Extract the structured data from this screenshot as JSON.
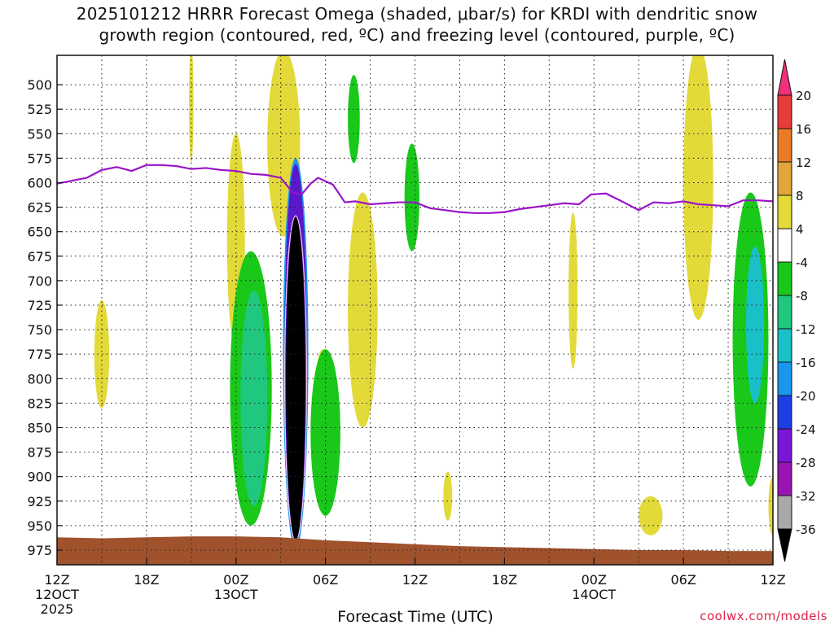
{
  "title_line1": "2025101212 HRRR Forecast Omega (shaded, μbar/s) for KRDI with dendritic snow",
  "title_line2": "growth region (contoured, red, ºC) and freezing level (contoured, purple, ºC)",
  "credit": "coolwx.com/models",
  "chart_data": {
    "type": "heatmap",
    "title": "2025101212 HRRR Forecast Omega (shaded, μbar/s) for KRDI with dendritic snow growth region (contoured, red, ºC) and freezing level (contoured, purple, ºC)",
    "xlabel": "Forecast Time (UTC)",
    "ylabel": "",
    "x_unit": "forecast hour",
    "xlim": [
      0,
      48
    ],
    "ylim": [
      990,
      470
    ],
    "y_scale": "pressure (hPa), increasing downward",
    "grid": true,
    "x_ticks": [
      {
        "hour": 0,
        "label": "12Z",
        "sub1": "12OCT",
        "sub2": "2025"
      },
      {
        "hour": 6,
        "label": "18Z",
        "sub1": "",
        "sub2": ""
      },
      {
        "hour": 12,
        "label": "00Z",
        "sub1": "13OCT",
        "sub2": ""
      },
      {
        "hour": 18,
        "label": "06Z",
        "sub1": "",
        "sub2": ""
      },
      {
        "hour": 24,
        "label": "12Z",
        "sub1": "",
        "sub2": ""
      },
      {
        "hour": 30,
        "label": "18Z",
        "sub1": "",
        "sub2": ""
      },
      {
        "hour": 36,
        "label": "00Z",
        "sub1": "14OCT",
        "sub2": ""
      },
      {
        "hour": 42,
        "label": "06Z",
        "sub1": "",
        "sub2": ""
      },
      {
        "hour": 48,
        "label": "12Z",
        "sub1": "",
        "sub2": ""
      }
    ],
    "y_ticks": [
      500,
      525,
      550,
      575,
      600,
      625,
      650,
      675,
      700,
      725,
      750,
      775,
      800,
      825,
      850,
      875,
      900,
      925,
      950,
      975
    ],
    "colorbar": {
      "unit": "μbar/s",
      "boundaries": [
        20,
        16,
        12,
        8,
        4,
        -4,
        -8,
        -12,
        -16,
        -20,
        -24,
        -28,
        -32,
        -36
      ],
      "colors": [
        "#f0307a",
        "#e83c3c",
        "#e97a26",
        "#e2a63a",
        "#e3da3a",
        "#ffffff",
        "#1ac81a",
        "#1fc87e",
        "#19c0c8",
        "#1a96f0",
        "#1e3ee6",
        "#7a16d6",
        "#9a14b4",
        "#a8a8a8",
        "#000000"
      ]
    },
    "freezing_level": {
      "color": "#9a14c8",
      "points": [
        [
          0,
          601
        ],
        [
          1,
          598
        ],
        [
          2,
          595
        ],
        [
          3,
          587
        ],
        [
          4,
          584
        ],
        [
          5,
          588
        ],
        [
          6,
          582
        ],
        [
          7,
          582
        ],
        [
          8,
          583
        ],
        [
          9,
          586
        ],
        [
          10,
          585
        ],
        [
          11,
          587
        ],
        [
          12,
          588
        ],
        [
          13,
          591
        ],
        [
          14,
          592
        ],
        [
          15,
          595
        ],
        [
          15.8,
          610
        ],
        [
          16.4,
          612
        ],
        [
          17,
          601
        ],
        [
          17.5,
          595
        ],
        [
          18.5,
          602
        ],
        [
          19.3,
          620
        ],
        [
          20,
          619
        ],
        [
          21,
          622
        ],
        [
          22,
          621
        ],
        [
          23,
          620
        ],
        [
          24,
          620
        ],
        [
          25,
          626
        ],
        [
          26,
          628
        ],
        [
          27,
          630
        ],
        [
          28,
          631
        ],
        [
          29,
          631
        ],
        [
          30,
          630
        ],
        [
          31,
          627
        ],
        [
          32,
          625
        ],
        [
          33,
          623
        ],
        [
          34,
          621
        ],
        [
          35,
          622
        ],
        [
          35.8,
          612
        ],
        [
          36.8,
          611
        ],
        [
          38,
          620
        ],
        [
          39,
          628
        ],
        [
          40,
          620
        ],
        [
          41,
          621
        ],
        [
          42,
          619
        ],
        [
          43,
          622
        ],
        [
          44,
          623
        ],
        [
          45,
          624
        ],
        [
          46,
          618
        ],
        [
          47,
          618
        ],
        [
          48,
          619
        ]
      ]
    },
    "terrain": {
      "color": "#a0522d",
      "surface_points": [
        [
          0,
          962
        ],
        [
          3,
          963
        ],
        [
          6,
          962
        ],
        [
          9,
          961
        ],
        [
          12,
          961
        ],
        [
          15,
          962
        ],
        [
          18,
          965
        ],
        [
          21,
          967
        ],
        [
          24,
          969
        ],
        [
          27,
          971
        ],
        [
          30,
          972
        ],
        [
          33,
          973
        ],
        [
          36,
          974
        ],
        [
          39,
          975
        ],
        [
          42,
          975
        ],
        [
          45,
          976
        ],
        [
          48,
          976
        ]
      ]
    },
    "omega_features": [
      {
        "kind": "downward",
        "band": "4",
        "center_hour": 15.2,
        "center_p": 560,
        "half_width_h": 1.1,
        "half_depth_p": 95
      },
      {
        "kind": "downward",
        "band": "4",
        "center_hour": 12.0,
        "center_p": 660,
        "half_width_h": 0.6,
        "half_depth_p": 110
      },
      {
        "kind": "downward",
        "band": "4",
        "center_hour": 3.0,
        "center_p": 775,
        "half_width_h": 0.5,
        "half_depth_p": 55
      },
      {
        "kind": "downward",
        "band": "4",
        "center_hour": 9.0,
        "center_p": 520,
        "half_width_h": 0.15,
        "half_depth_p": 60
      },
      {
        "kind": "downward",
        "band": "4",
        "center_hour": 20.5,
        "center_p": 730,
        "half_width_h": 1.0,
        "half_depth_p": 120
      },
      {
        "kind": "downward",
        "band": "4",
        "center_hour": 17.8,
        "center_p": 820,
        "half_width_h": 0.5,
        "half_depth_p": 50
      },
      {
        "kind": "downward",
        "band": "4",
        "center_hour": 43.0,
        "center_p": 600,
        "half_width_h": 1.0,
        "half_depth_p": 140
      },
      {
        "kind": "downward",
        "band": "4",
        "center_hour": 34.6,
        "center_p": 710,
        "half_width_h": 0.3,
        "half_depth_p": 80
      },
      {
        "kind": "downward",
        "band": "4",
        "center_hour": 26.2,
        "center_p": 920,
        "half_width_h": 0.3,
        "half_depth_p": 25
      },
      {
        "kind": "downward",
        "band": "4",
        "center_hour": 39.8,
        "center_p": 940,
        "half_width_h": 0.8,
        "half_depth_p": 20
      },
      {
        "kind": "downward",
        "band": "4",
        "center_hour": 48.0,
        "center_p": 930,
        "half_width_h": 0.3,
        "half_depth_p": 30
      },
      {
        "kind": "upward",
        "band": "-4",
        "center_hour": 19.9,
        "center_p": 535,
        "half_width_h": 0.4,
        "half_depth_p": 45
      },
      {
        "kind": "upward",
        "band": "-4",
        "center_hour": 23.8,
        "center_p": 615,
        "half_width_h": 0.5,
        "half_depth_p": 55
      },
      {
        "kind": "upward",
        "band": "-4",
        "center_hour": 13.0,
        "center_p": 810,
        "half_width_h": 1.4,
        "half_depth_p": 140
      },
      {
        "kind": "upward",
        "band": "-4",
        "center_hour": 18.0,
        "center_p": 855,
        "half_width_h": 1.0,
        "half_depth_p": 85
      },
      {
        "kind": "upward",
        "band": "-4",
        "center_hour": 46.5,
        "center_p": 760,
        "half_width_h": 1.2,
        "half_depth_p": 150
      },
      {
        "kind": "upward",
        "band": "-8",
        "center_hour": 13.2,
        "center_p": 820,
        "half_width_h": 0.9,
        "half_depth_p": 110
      },
      {
        "kind": "upward",
        "band": "-12",
        "center_hour": 46.8,
        "center_p": 745,
        "half_width_h": 0.6,
        "half_depth_p": 80
      },
      {
        "kind": "upward",
        "band": "-16",
        "center_hour": 16.0,
        "center_p": 775,
        "half_width_h": 0.85,
        "half_depth_p": 200
      },
      {
        "kind": "upward",
        "band": "-36",
        "center_hour": 16.0,
        "center_p": 800,
        "half_width_h": 0.65,
        "half_depth_p": 165
      }
    ]
  }
}
